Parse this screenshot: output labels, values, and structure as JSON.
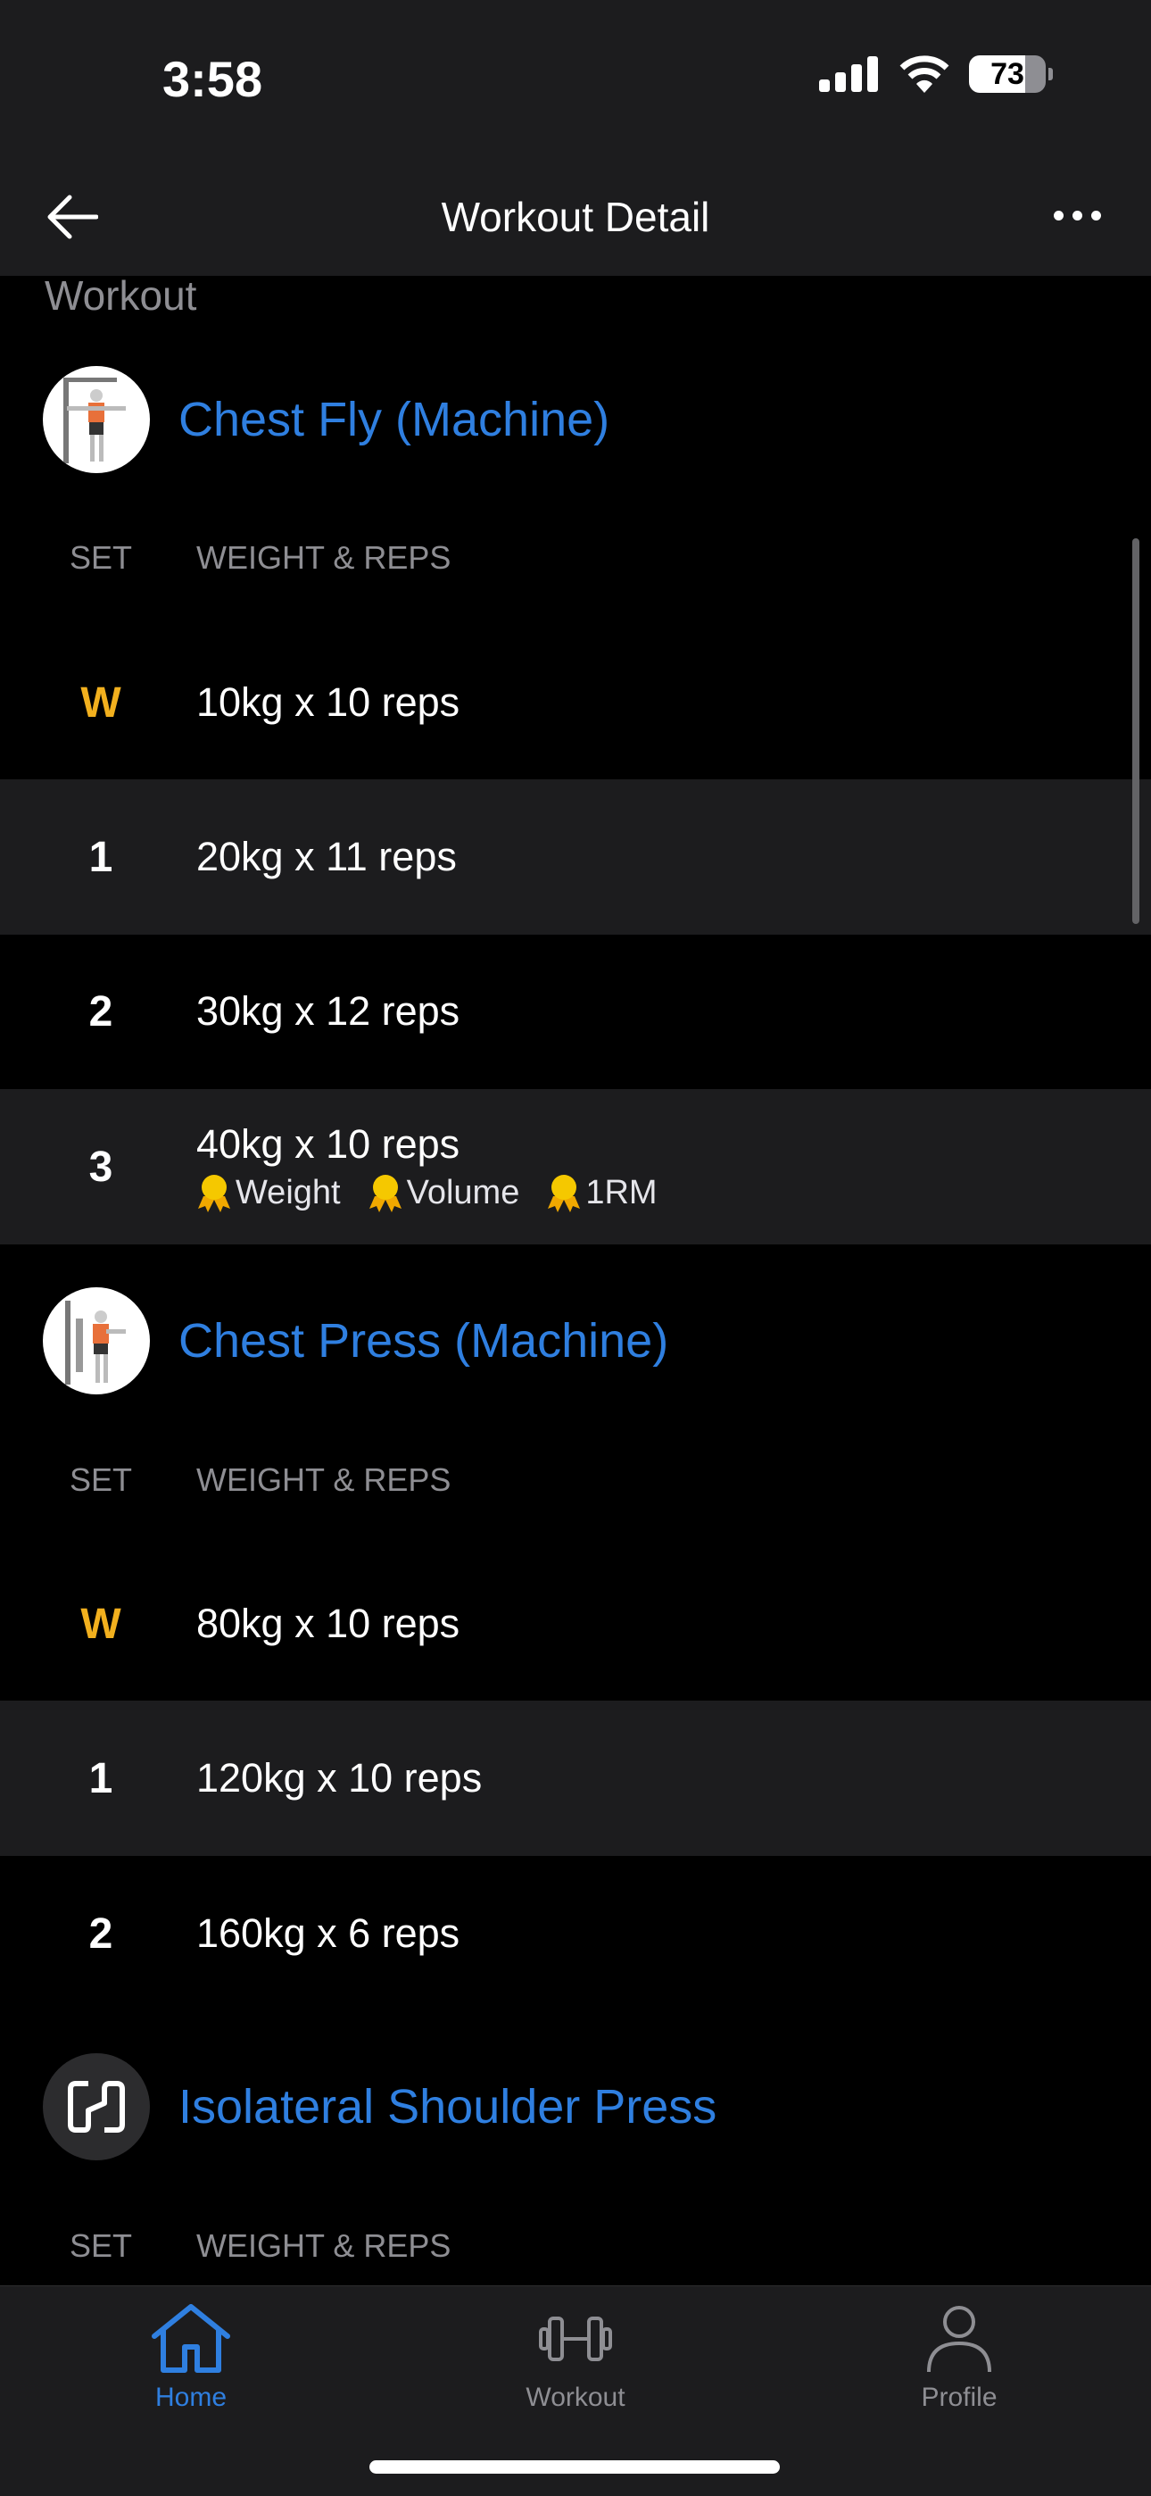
{
  "status": {
    "time": "3:58",
    "battery": "73"
  },
  "nav": {
    "title": "Workout Detail"
  },
  "section_label": "Workout",
  "columns": {
    "set": "SET",
    "weight_reps": "WEIGHT & REPS"
  },
  "colors": {
    "accent": "#2f7fe0",
    "warmup": "#f2b01e",
    "medal": "#f5c800"
  },
  "exercises": [
    {
      "name": "Chest Fly (Machine)",
      "sets": [
        {
          "set": "W",
          "value": "10kg x 10 reps"
        },
        {
          "set": "1",
          "value": "20kg x 11 reps"
        },
        {
          "set": "2",
          "value": "30kg x 12 reps"
        },
        {
          "set": "3",
          "value": "40kg x 10 reps",
          "records": [
            "Weight",
            "Volume",
            "1RM"
          ]
        }
      ]
    },
    {
      "name": "Chest Press (Machine)",
      "sets": [
        {
          "set": "W",
          "value": "80kg x 10 reps"
        },
        {
          "set": "1",
          "value": "120kg x 10 reps"
        },
        {
          "set": "2",
          "value": "160kg x 6 reps"
        }
      ]
    },
    {
      "name": "Isolateral Shoulder Press",
      "sets": []
    }
  ],
  "tabs": [
    {
      "label": "Home",
      "icon": "home-icon",
      "active": true
    },
    {
      "label": "Workout",
      "icon": "dumbbell-icon"
    },
    {
      "label": "Profile",
      "icon": "person-icon"
    }
  ]
}
